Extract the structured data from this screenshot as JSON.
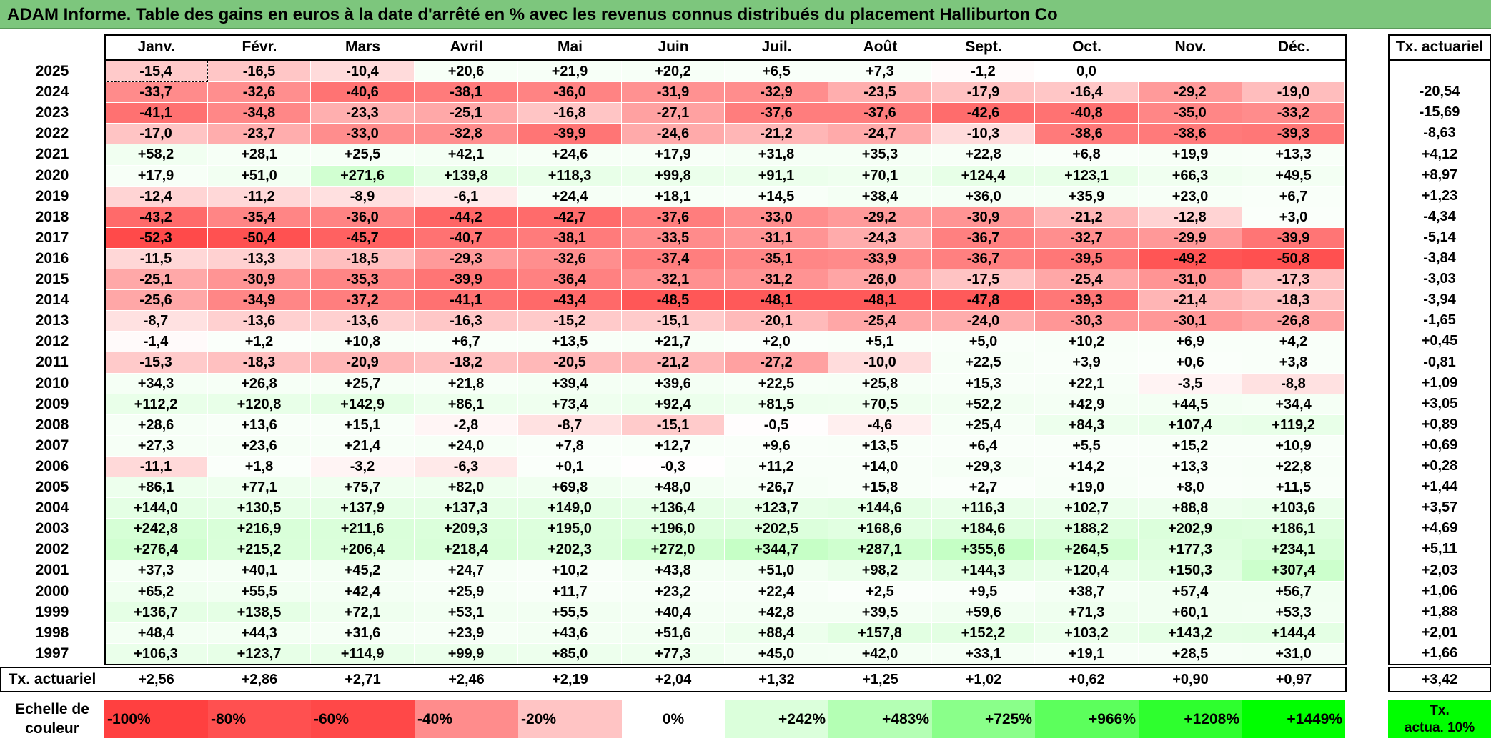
{
  "title": "ADAM Informe. Table des gains en euros à la date d'arrêté en % avec les revenus connus distribués du placement Halliburton Co",
  "months": [
    "Janv.",
    "Févr.",
    "Mars",
    "Avril",
    "Mai",
    "Juin",
    "Juil.",
    "Août",
    "Sept.",
    "Oct.",
    "Nov.",
    "Déc."
  ],
  "actuarial_header": "Tx. actuariel",
  "rows": [
    {
      "year": "2025",
      "values": [
        "-15,4",
        "-16,5",
        "-10,4",
        "+20,6",
        "+21,9",
        "+20,2",
        "+6,5",
        "+7,3",
        "-1,2",
        "0,0",
        "",
        ""
      ],
      "rate": ""
    },
    {
      "year": "2024",
      "values": [
        "-33,7",
        "-32,6",
        "-40,6",
        "-38,1",
        "-36,0",
        "-31,9",
        "-32,9",
        "-23,5",
        "-17,9",
        "-16,4",
        "-29,2",
        "-19,0"
      ],
      "rate": "-20,54"
    },
    {
      "year": "2023",
      "values": [
        "-41,1",
        "-34,8",
        "-23,3",
        "-25,1",
        "-16,8",
        "-27,1",
        "-37,6",
        "-37,6",
        "-42,6",
        "-40,8",
        "-35,0",
        "-33,2"
      ],
      "rate": "-15,69"
    },
    {
      "year": "2022",
      "values": [
        "-17,0",
        "-23,7",
        "-33,0",
        "-32,8",
        "-39,9",
        "-24,6",
        "-21,2",
        "-24,7",
        "-10,3",
        "-38,6",
        "-38,6",
        "-39,3"
      ],
      "rate": "-8,63"
    },
    {
      "year": "2021",
      "values": [
        "+58,2",
        "+28,1",
        "+25,5",
        "+42,1",
        "+24,6",
        "+17,9",
        "+31,8",
        "+35,3",
        "+22,8",
        "+6,8",
        "+19,9",
        "+13,3"
      ],
      "rate": "+4,12"
    },
    {
      "year": "2020",
      "values": [
        "+17,9",
        "+51,0",
        "+271,6",
        "+139,8",
        "+118,3",
        "+99,8",
        "+91,1",
        "+70,1",
        "+124,4",
        "+123,1",
        "+66,3",
        "+49,5"
      ],
      "rate": "+8,97"
    },
    {
      "year": "2019",
      "values": [
        "-12,4",
        "-11,2",
        "-8,9",
        "-6,1",
        "+24,4",
        "+18,1",
        "+14,5",
        "+38,4",
        "+36,0",
        "+35,9",
        "+23,0",
        "+6,7"
      ],
      "rate": "+1,23"
    },
    {
      "year": "2018",
      "values": [
        "-43,2",
        "-35,4",
        "-36,0",
        "-44,2",
        "-42,7",
        "-37,6",
        "-33,0",
        "-29,2",
        "-30,9",
        "-21,2",
        "-12,8",
        "+3,0"
      ],
      "rate": "-4,34"
    },
    {
      "year": "2017",
      "values": [
        "-52,3",
        "-50,4",
        "-45,7",
        "-40,7",
        "-38,1",
        "-33,5",
        "-31,1",
        "-24,3",
        "-36,7",
        "-32,7",
        "-29,9",
        "-39,9"
      ],
      "rate": "-5,14"
    },
    {
      "year": "2016",
      "values": [
        "-11,5",
        "-13,3",
        "-18,5",
        "-29,3",
        "-32,6",
        "-37,4",
        "-35,1",
        "-33,9",
        "-36,7",
        "-39,5",
        "-49,2",
        "-50,8"
      ],
      "rate": "-3,84"
    },
    {
      "year": "2015",
      "values": [
        "-25,1",
        "-30,9",
        "-35,3",
        "-39,9",
        "-36,4",
        "-32,1",
        "-31,2",
        "-26,0",
        "-17,5",
        "-25,4",
        "-31,0",
        "-17,3"
      ],
      "rate": "-3,03"
    },
    {
      "year": "2014",
      "values": [
        "-25,6",
        "-34,9",
        "-37,2",
        "-41,1",
        "-43,4",
        "-48,5",
        "-48,1",
        "-48,1",
        "-47,8",
        "-39,3",
        "-21,4",
        "-18,3"
      ],
      "rate": "-3,94"
    },
    {
      "year": "2013",
      "values": [
        "-8,7",
        "-13,6",
        "-13,6",
        "-16,3",
        "-15,2",
        "-15,1",
        "-20,1",
        "-25,4",
        "-24,0",
        "-30,3",
        "-30,1",
        "-26,8"
      ],
      "rate": "-1,65"
    },
    {
      "year": "2012",
      "values": [
        "-1,4",
        "+1,2",
        "+10,8",
        "+6,7",
        "+13,5",
        "+21,7",
        "+2,0",
        "+5,1",
        "+5,0",
        "+10,2",
        "+6,9",
        "+4,2"
      ],
      "rate": "+0,45"
    },
    {
      "year": "2011",
      "values": [
        "-15,3",
        "-18,3",
        "-20,9",
        "-18,2",
        "-20,5",
        "-21,2",
        "-27,2",
        "-10,0",
        "+22,5",
        "+3,9",
        "+0,6",
        "+3,8"
      ],
      "rate": "-0,81"
    },
    {
      "year": "2010",
      "values": [
        "+34,3",
        "+26,8",
        "+25,7",
        "+21,8",
        "+39,4",
        "+39,6",
        "+22,5",
        "+25,8",
        "+15,3",
        "+22,1",
        "-3,5",
        "-8,8"
      ],
      "rate": "+1,09"
    },
    {
      "year": "2009",
      "values": [
        "+112,2",
        "+120,8",
        "+142,9",
        "+86,1",
        "+73,4",
        "+92,4",
        "+81,5",
        "+70,5",
        "+52,2",
        "+42,9",
        "+44,5",
        "+34,4"
      ],
      "rate": "+3,05"
    },
    {
      "year": "2008",
      "values": [
        "+28,6",
        "+13,6",
        "+15,1",
        "-2,8",
        "-8,7",
        "-15,1",
        "-0,5",
        "-4,6",
        "+25,4",
        "+84,3",
        "+107,4",
        "+119,2"
      ],
      "rate": "+0,89"
    },
    {
      "year": "2007",
      "values": [
        "+27,3",
        "+23,6",
        "+21,4",
        "+24,0",
        "+7,8",
        "+12,7",
        "+9,6",
        "+13,5",
        "+6,4",
        "+5,5",
        "+15,2",
        "+10,9"
      ],
      "rate": "+0,69"
    },
    {
      "year": "2006",
      "values": [
        "-11,1",
        "+1,8",
        "-3,2",
        "-6,3",
        "+0,1",
        "-0,3",
        "+11,2",
        "+14,0",
        "+29,3",
        "+14,2",
        "+13,3",
        "+22,8"
      ],
      "rate": "+0,28"
    },
    {
      "year": "2005",
      "values": [
        "+86,1",
        "+77,1",
        "+75,7",
        "+82,0",
        "+69,8",
        "+48,0",
        "+26,7",
        "+15,8",
        "+2,7",
        "+19,0",
        "+8,0",
        "+11,5"
      ],
      "rate": "+1,44"
    },
    {
      "year": "2004",
      "values": [
        "+144,0",
        "+130,5",
        "+137,9",
        "+137,3",
        "+149,0",
        "+136,4",
        "+123,7",
        "+144,6",
        "+116,3",
        "+102,7",
        "+88,8",
        "+103,6"
      ],
      "rate": "+3,57"
    },
    {
      "year": "2003",
      "values": [
        "+242,8",
        "+216,9",
        "+211,6",
        "+209,3",
        "+195,0",
        "+196,0",
        "+202,5",
        "+168,6",
        "+184,6",
        "+188,2",
        "+202,9",
        "+186,1"
      ],
      "rate": "+4,69"
    },
    {
      "year": "2002",
      "values": [
        "+276,4",
        "+215,2",
        "+206,4",
        "+218,4",
        "+202,3",
        "+272,0",
        "+344,7",
        "+287,1",
        "+355,6",
        "+264,5",
        "+177,3",
        "+234,1"
      ],
      "rate": "+5,11"
    },
    {
      "year": "2001",
      "values": [
        "+37,3",
        "+40,1",
        "+45,2",
        "+24,7",
        "+10,2",
        "+43,8",
        "+51,0",
        "+98,2",
        "+144,3",
        "+120,4",
        "+150,3",
        "+307,4"
      ],
      "rate": "+2,03"
    },
    {
      "year": "2000",
      "values": [
        "+65,2",
        "+55,5",
        "+42,4",
        "+25,9",
        "+11,7",
        "+23,2",
        "+22,4",
        "+2,5",
        "+9,5",
        "+38,7",
        "+57,4",
        "+56,7"
      ],
      "rate": "+1,06"
    },
    {
      "year": "1999",
      "values": [
        "+136,7",
        "+138,5",
        "+72,1",
        "+53,1",
        "+55,5",
        "+40,4",
        "+42,8",
        "+39,5",
        "+59,6",
        "+71,3",
        "+60,1",
        "+53,3"
      ],
      "rate": "+1,88"
    },
    {
      "year": "1998",
      "values": [
        "+48,4",
        "+44,3",
        "+31,6",
        "+23,9",
        "+43,6",
        "+51,6",
        "+88,4",
        "+157,8",
        "+152,2",
        "+103,2",
        "+143,2",
        "+144,4"
      ],
      "rate": "+2,01"
    },
    {
      "year": "1997",
      "values": [
        "+106,3",
        "+123,7",
        "+114,9",
        "+99,9",
        "+85,0",
        "+77,3",
        "+45,0",
        "+42,0",
        "+33,1",
        "+19,1",
        "+28,5",
        "+31,0"
      ],
      "rate": "+1,66"
    }
  ],
  "footer": {
    "label": "Tx. actuariel",
    "values": [
      "+2,56",
      "+2,86",
      "+2,71",
      "+2,46",
      "+2,19",
      "+2,04",
      "+1,32",
      "+1,25",
      "+1,02",
      "+0,62",
      "+0,90",
      "+0,97"
    ],
    "rate": "+3,42"
  },
  "scale": {
    "label_line1": "Echelle de",
    "label_line2": "couleur",
    "steps": [
      {
        "text": "-100%",
        "color": "#ff4040",
        "align": "left"
      },
      {
        "text": "-80%",
        "color": "#ff5050",
        "align": "left"
      },
      {
        "text": "-60%",
        "color": "#ff4848",
        "align": "left"
      },
      {
        "text": "-40%",
        "color": "#ff8c8c",
        "align": "left"
      },
      {
        "text": "-20%",
        "color": "#ffc4c4",
        "align": "left"
      },
      {
        "text": "0%",
        "color": "#ffffff",
        "align": "center"
      },
      {
        "text": "+242%",
        "color": "#dbffdb",
        "align": "right"
      },
      {
        "text": "+483%",
        "color": "#b4ffb4",
        "align": "right"
      },
      {
        "text": "+725%",
        "color": "#8aff8a",
        "align": "right"
      },
      {
        "text": "+966%",
        "color": "#5cff5c",
        "align": "right"
      },
      {
        "text": "+1208%",
        "color": "#2eff2e",
        "align": "right"
      },
      {
        "text": "+1449%",
        "color": "#00ff00",
        "align": "right"
      }
    ],
    "actuarial_swatch_line1": "Tx.",
    "actuarial_swatch_line2": "actua. 10%",
    "actuarial_swatch_color": "#00ff00"
  }
}
